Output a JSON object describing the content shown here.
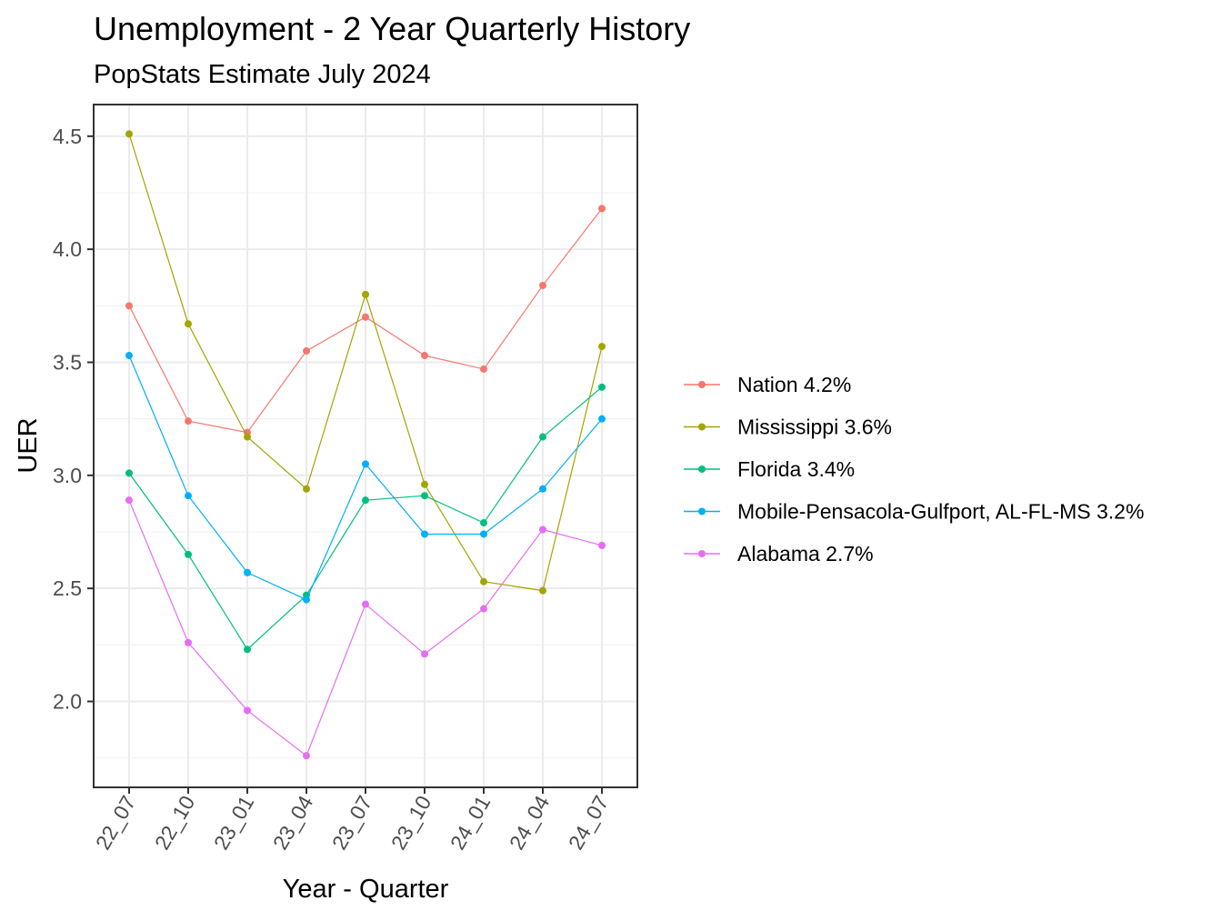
{
  "chart_data": {
    "type": "line",
    "title": "Unemployment - 2 Year Quarterly History",
    "subtitle": "PopStats Estimate July 2024",
    "xlabel": "Year - Quarter",
    "ylabel": "UER",
    "categories": [
      "22_07",
      "22_10",
      "23_01",
      "23_04",
      "23_07",
      "23_10",
      "24_01",
      "24_04",
      "24_07"
    ],
    "ylim": [
      1.62,
      4.64
    ],
    "yticks": [
      2.0,
      2.5,
      3.0,
      3.5,
      4.0,
      4.5
    ],
    "ytick_labels": [
      "2.0",
      "2.5",
      "3.0",
      "3.5",
      "4.0",
      "4.5"
    ],
    "grid": true,
    "legend_position": "right",
    "series": [
      {
        "name": "Nation 4.2%",
        "color": "#F8766D",
        "values": [
          3.75,
          3.24,
          3.19,
          3.55,
          3.7,
          3.53,
          3.47,
          3.84,
          4.18
        ]
      },
      {
        "name": "Mississippi 3.6%",
        "color": "#A3A500",
        "values": [
          4.51,
          3.67,
          3.17,
          2.94,
          3.8,
          2.96,
          2.53,
          2.49,
          3.57
        ]
      },
      {
        "name": "Florida 3.4%",
        "color": "#00BF7D",
        "values": [
          3.01,
          2.65,
          2.23,
          2.47,
          2.89,
          2.91,
          2.79,
          3.17,
          3.39
        ]
      },
      {
        "name": "Mobile-Pensacola-Gulfport, AL-FL-MS 3.2%",
        "color": "#00B0F6",
        "values": [
          3.53,
          2.91,
          2.57,
          2.45,
          3.05,
          2.74,
          2.74,
          2.94,
          3.25
        ]
      },
      {
        "name": "Alabama 2.7%",
        "color": "#E76BF3",
        "values": [
          2.89,
          2.26,
          1.96,
          1.76,
          2.43,
          2.21,
          2.41,
          2.76,
          2.69
        ]
      }
    ]
  }
}
